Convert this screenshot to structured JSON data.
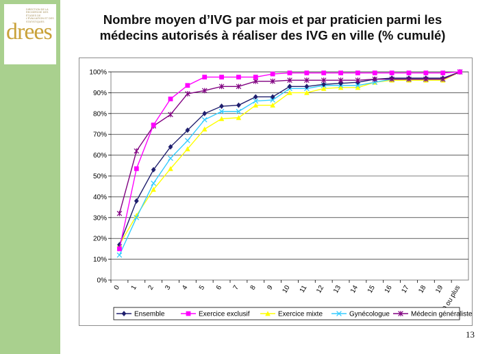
{
  "slide": {
    "title_line1": "Nombre moyen d’IVG par mois et par praticien parmi les",
    "title_line2": "médecins autorisés à réaliser des IVG en ville (% cumulé)",
    "page_number": "13",
    "logo_text": "drees",
    "logo_small_text": "DIRECTION DE LA RECHERCHE DES ÉTUDES DE L'ÉVALUATION ET DES STATISTIQUES"
  },
  "colors": {
    "sidebar": "#a9d08e",
    "logo": "#c9a23a"
  },
  "chart_data": {
    "type": "line",
    "title": "",
    "xlabel": "",
    "ylabel": "",
    "categories": [
      "0",
      "1",
      "2",
      "3",
      "4",
      "5",
      "6",
      "7",
      "8",
      "9",
      "10",
      "11",
      "12",
      "13",
      "14",
      "15",
      "16",
      "17",
      "18",
      "19",
      "20 ou plus"
    ],
    "ylim": [
      0,
      100
    ],
    "yticks": [
      "0%",
      "10%",
      "20%",
      "30%",
      "40%",
      "50%",
      "60%",
      "70%",
      "80%",
      "90%",
      "100%"
    ],
    "grid": true,
    "legend_position": "bottom",
    "series": [
      {
        "name": "Ensemble",
        "color": "#1f1f6e",
        "marker": "diamond",
        "values": [
          17,
          38,
          53,
          64,
          72,
          80,
          83.5,
          84,
          88,
          88,
          93,
          93,
          94,
          94.5,
          95,
          96.5,
          97,
          97,
          97,
          97,
          100
        ]
      },
      {
        "name": "Exercice exclusif",
        "color": "#ff00ff",
        "marker": "square",
        "values": [
          15,
          53.5,
          74.5,
          87,
          93.5,
          97.5,
          97.5,
          97.5,
          97.5,
          99,
          99.5,
          99.5,
          99.5,
          99.5,
          99.5,
          99.5,
          99.5,
          99.5,
          99.5,
          99.5,
          100
        ]
      },
      {
        "name": "Exercice mixte",
        "color": "#ffff00",
        "marker": "triangle",
        "values": [
          17,
          31,
          43.5,
          53.5,
          63,
          72.5,
          77.5,
          78,
          84,
          84,
          90,
          90,
          92,
          92.5,
          92.5,
          95,
          96,
          96,
          96,
          96,
          100
        ]
      },
      {
        "name": "Gynécologue",
        "color": "#33ccff",
        "marker": "x",
        "values": [
          12,
          30,
          46.5,
          58.5,
          67,
          77,
          81,
          81,
          86,
          86.5,
          92,
          92,
          93.5,
          93.5,
          93.5,
          95,
          96.5,
          96.5,
          96.5,
          96.5,
          100
        ]
      },
      {
        "name": "Médecin généraliste",
        "color": "#800080",
        "marker": "star",
        "values": [
          32,
          62,
          74,
          79.5,
          89.5,
          91,
          93,
          93,
          95.5,
          95.5,
          96,
          96,
          96,
          96,
          96,
          96.5,
          96.5,
          96.5,
          96.5,
          96.5,
          100
        ]
      }
    ]
  }
}
